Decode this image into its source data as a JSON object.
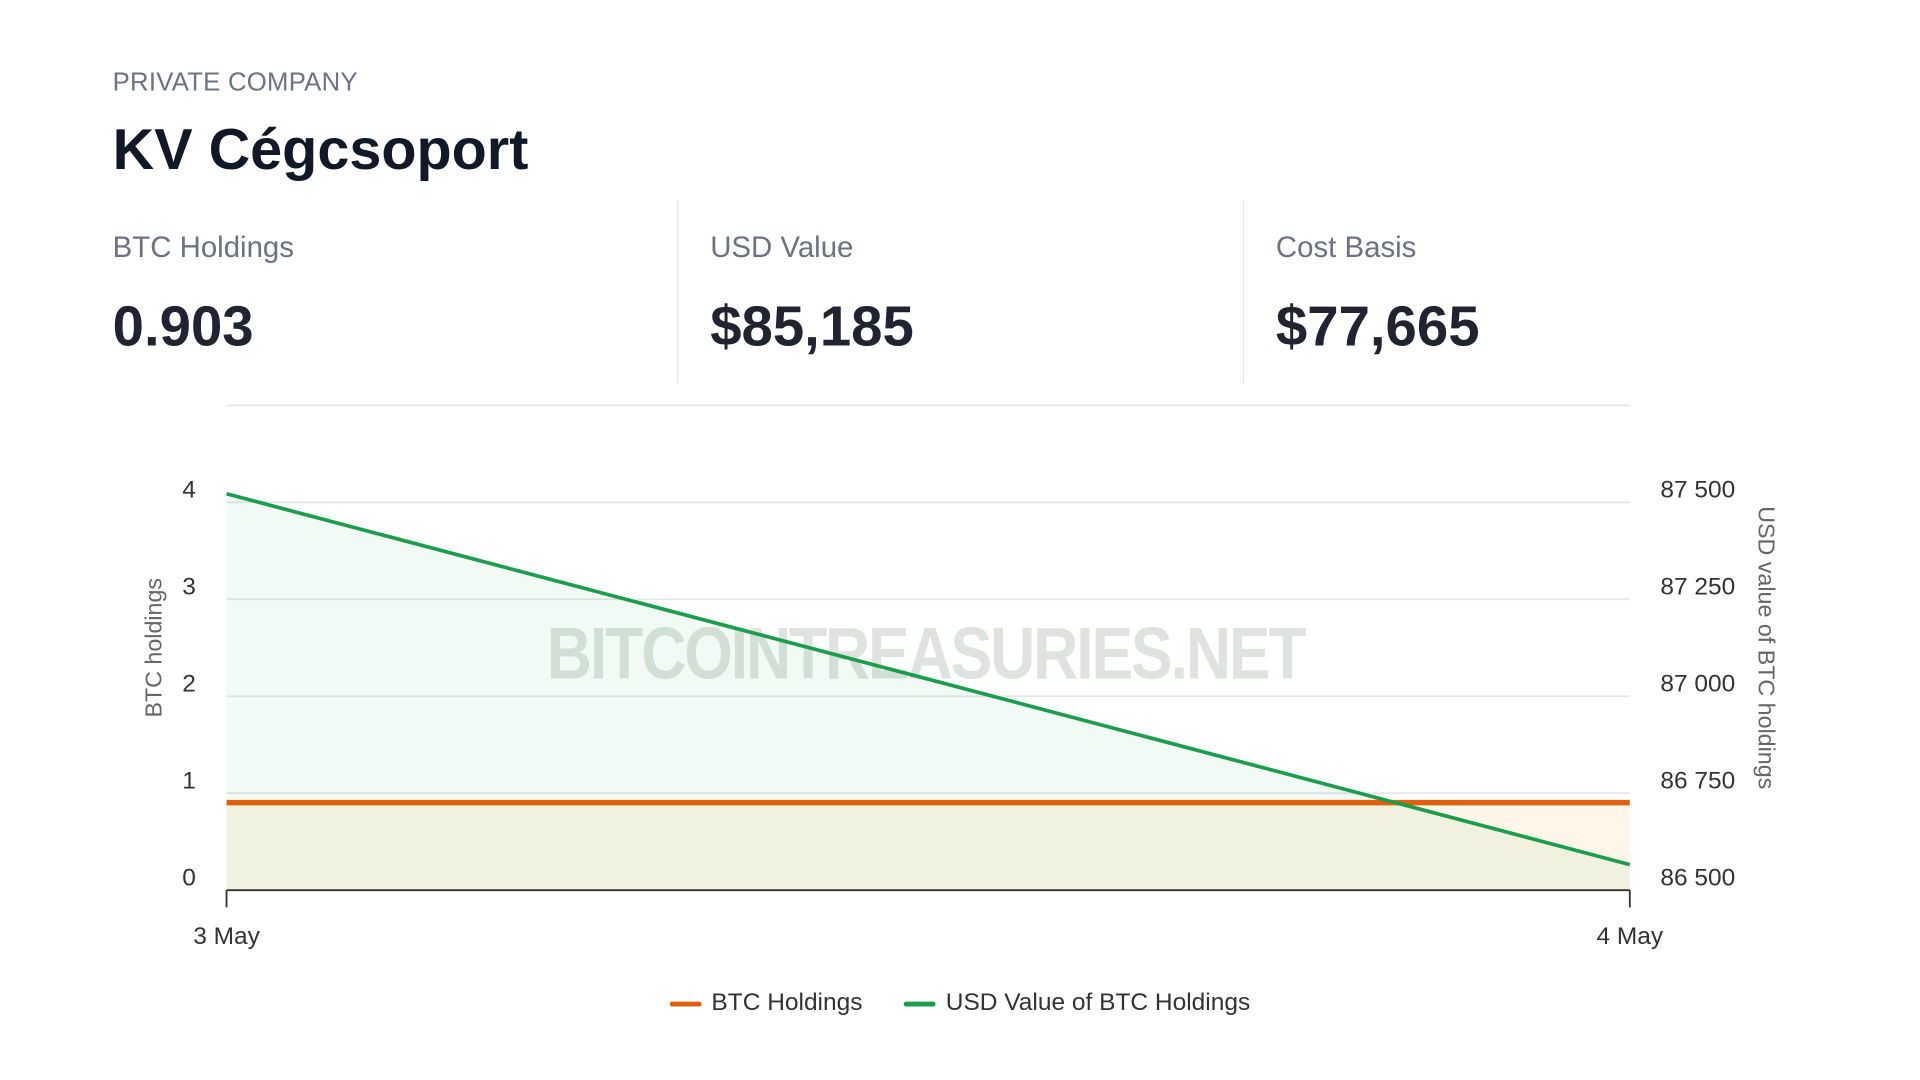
{
  "header": {
    "eyebrow": "PRIVATE COMPANY",
    "title": "KV Cégcsoport"
  },
  "stats": [
    {
      "label": "BTC Holdings",
      "value": "0.903"
    },
    {
      "label": "USD Value",
      "value": "$85,185"
    },
    {
      "label": "Cost Basis",
      "value": "$77,665"
    }
  ],
  "watermark": "BITCOINTREASURIES.NET",
  "colors": {
    "btc": "#e0600f",
    "usd": "#1a9e4b"
  },
  "chart_data": {
    "type": "line",
    "x": [
      "3 May",
      "4 May"
    ],
    "series": [
      {
        "name": "BTC Holdings",
        "axis": "left",
        "values": [
          0.903,
          0.903
        ]
      },
      {
        "name": "USD Value of BTC Holdings",
        "axis": "right",
        "values": [
          87522,
          86566
        ]
      }
    ],
    "ylabel": "BTC holdings",
    "ylabel_right": "USD value of BTC holdings",
    "ylim": [
      0,
      5
    ],
    "ylim_right": [
      86500,
      87750
    ],
    "yticks": [
      0,
      1,
      2,
      3,
      4
    ],
    "ytick_labels": [
      "0",
      "1",
      "2",
      "3",
      "4"
    ],
    "yticks_right_labels": [
      "86 500",
      "86 750",
      "87 000",
      "87 250",
      "87 500"
    ],
    "xtick_labels": [
      "3 May",
      "4 May"
    ],
    "grid": true,
    "legend": [
      "BTC Holdings",
      "USD Value of BTC Holdings"
    ],
    "legend_position": "bottom"
  }
}
